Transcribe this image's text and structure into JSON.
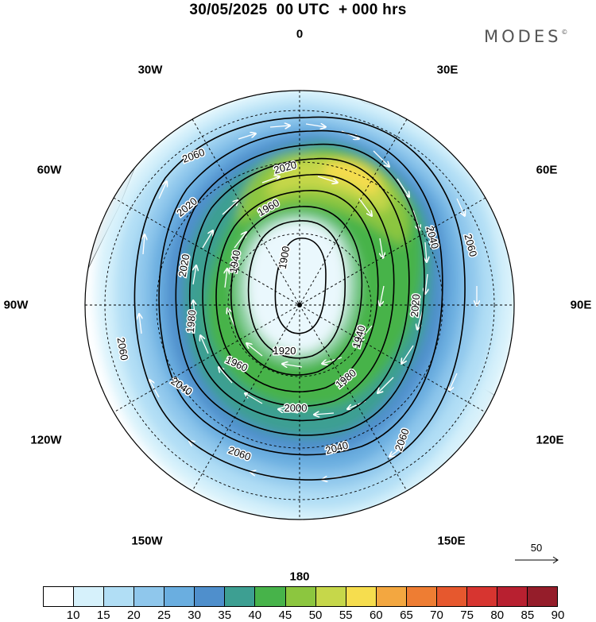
{
  "title": "30/05/2025  00 UTC  + 000 hrs",
  "brand": "MODES",
  "brand_mark": "©",
  "longitude_labels": {
    "n": "0",
    "ne": "30E",
    "ene": "60E",
    "e": "90E",
    "ese": "120E",
    "se": "150E",
    "s": "180",
    "sw": "150W",
    "wsw": "120W",
    "w": "90W",
    "wnw": "60W",
    "nw": "30W"
  },
  "contour_labels": {
    "c1900": "1900",
    "c1920": "1920",
    "c1940a": "1940",
    "c1940b": "1940",
    "c1960a": "1960",
    "c1960b": "1960",
    "c1980a": "1980",
    "c1980b": "1980",
    "c2000": "2000",
    "c2020a": "2020",
    "c2020b": "2020",
    "c2020c": "2020",
    "c2020d": "2020",
    "c2040a": "2040",
    "c2040b": "2040",
    "c2040c": "2040",
    "c2060a": "2060",
    "c2060b": "2060",
    "c2060c": "2060",
    "c2060d": "2060",
    "c2060e": "2060"
  },
  "reference_vector": "50",
  "colorbar": {
    "ticks": [
      "10",
      "15",
      "20",
      "25",
      "30",
      "35",
      "40",
      "45",
      "50",
      "55",
      "60",
      "65",
      "70",
      "75",
      "80",
      "85",
      "90"
    ],
    "colors": [
      "#ffffff",
      "#d6f1fb",
      "#b1def5",
      "#8fc7ec",
      "#6aaee0",
      "#4f8fcc",
      "#3d9f92",
      "#47b34a",
      "#8cc63f",
      "#c6d74a",
      "#f6dd4e",
      "#f3a740",
      "#ee7d33",
      "#e6582e",
      "#d73530",
      "#b82030",
      "#951d2a"
    ]
  }
}
